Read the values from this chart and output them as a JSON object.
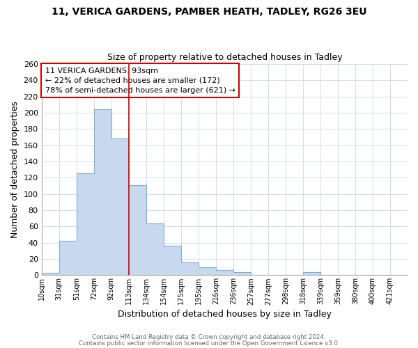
{
  "title_line1": "11, VERICA GARDENS, PAMBER HEATH, TADLEY, RG26 3EU",
  "title_line2": "Size of property relative to detached houses in Tadley",
  "xlabel": "Distribution of detached houses by size in Tadley",
  "ylabel": "Number of detached properties",
  "bin_labels": [
    "10sqm",
    "31sqm",
    "51sqm",
    "72sqm",
    "92sqm",
    "113sqm",
    "134sqm",
    "154sqm",
    "175sqm",
    "195sqm",
    "216sqm",
    "236sqm",
    "257sqm",
    "277sqm",
    "298sqm",
    "318sqm",
    "339sqm",
    "359sqm",
    "380sqm",
    "400sqm",
    "421sqm"
  ],
  "bar_heights": [
    3,
    42,
    125,
    204,
    168,
    111,
    64,
    36,
    16,
    10,
    6,
    4,
    0,
    0,
    0,
    4,
    0,
    0,
    0,
    0,
    0
  ],
  "bar_color": "#c8d9ef",
  "bar_edge_color": "#7bafd4",
  "annotation_box_text": "11 VERICA GARDENS: 93sqm\n← 22% of detached houses are smaller (172)\n78% of semi-detached houses are larger (621) →",
  "annotation_box_edgecolor": "#cc0000",
  "annotation_box_facecolor": "#ffffff",
  "redline_index": 4,
  "ylim": [
    0,
    260
  ],
  "yticks": [
    0,
    20,
    40,
    60,
    80,
    100,
    120,
    140,
    160,
    180,
    200,
    220,
    240,
    260
  ],
  "footer_line1": "Contains HM Land Registry data © Crown copyright and database right 2024.",
  "footer_line2": "Contains public sector information licensed under the Open Government Licence v3.0.",
  "background_color": "#ffffff",
  "grid_color": "#d0dce8"
}
